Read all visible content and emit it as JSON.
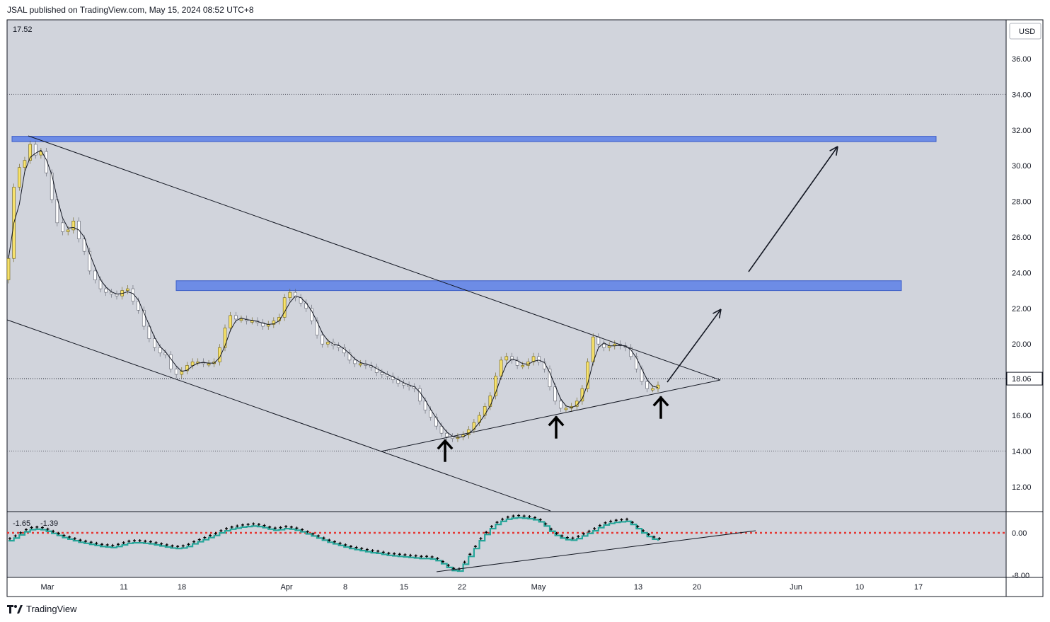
{
  "header": {
    "published": "JSAL published on TradingView.com, May 15, 2024 08:52 UTC+8"
  },
  "footer": {
    "brand": "TradingView",
    "logo_icon": "tradingview-logo-icon"
  },
  "colors": {
    "pane_bg": "#d1d4dc",
    "bar_up": "#f7e26b",
    "bar_down": "#ffffff",
    "zone": "#6d8ce6",
    "zone_border": "#3e5fc7",
    "cci_line": "#26a69a",
    "cci_dots": "#000000",
    "zero_line": "#e53935"
  },
  "chart_data": {
    "type": "bar",
    "currency": "USD",
    "top_left_value": "17.52",
    "current_price": "18.06",
    "y_ticks": [
      "36.00",
      "34.00",
      "32.00",
      "30.00",
      "28.00",
      "26.00",
      "24.00",
      "22.00",
      "20.00",
      "18.00",
      "16.00",
      "14.00",
      "12.00"
    ],
    "ylim": [
      11.5,
      37.5
    ],
    "x_labels": [
      "Mar",
      "11",
      "18",
      "Apr",
      "8",
      "15",
      "22",
      "May",
      "13",
      "20",
      "Jun",
      "10",
      "17"
    ],
    "gridlines": [
      34,
      14
    ],
    "closes": [
      24.8,
      28.8,
      29.9,
      30.3,
      31.2,
      30.6,
      30.8,
      29.6,
      28.1,
      26.8,
      26.3,
      26.4,
      26.9,
      25.9,
      25.2,
      24.1,
      23.6,
      23.1,
      22.9,
      22.8,
      22.7,
      23.0,
      23.1,
      22.4,
      21.9,
      21.0,
      20.3,
      19.8,
      19.5,
      19.4,
      18.6,
      18.3,
      18.5,
      18.8,
      19.0,
      19.0,
      18.9,
      18.9,
      19.0,
      19.8,
      20.9,
      21.6,
      21.4,
      21.4,
      21.3,
      21.3,
      21.2,
      21.0,
      21.1,
      21.3,
      21.5,
      22.6,
      22.9,
      22.6,
      22.3,
      22.0,
      21.3,
      20.5,
      20.0,
      20.1,
      19.9,
      19.8,
      19.5,
      19.1,
      18.9,
      18.9,
      18.8,
      18.7,
      18.4,
      18.3,
      18.2,
      18.0,
      17.8,
      17.7,
      17.6,
      17.5,
      16.8,
      16.3,
      15.9,
      15.4,
      15.0,
      14.8,
      14.7,
      14.8,
      14.9,
      15.2,
      15.6,
      16.0,
      16.5,
      17.1,
      18.2,
      19.1,
      19.3,
      19.1,
      18.8,
      18.8,
      19.0,
      19.3,
      19.0,
      18.6,
      17.6,
      16.8,
      16.4,
      16.4,
      16.5,
      16.8,
      17.5,
      19.0,
      20.4,
      20.0,
      19.8,
      19.9,
      20.0,
      19.9,
      19.8,
      19.3,
      18.6,
      17.9,
      17.5,
      17.5,
      17.7
    ],
    "ma_label": "17.52",
    "zones": [
      {
        "from": 31.35,
        "to": 31.65
      },
      {
        "from": 23.0,
        "to": 23.55
      }
    ],
    "cci": {
      "label_a": "-1.65",
      "label_b": "-1.39",
      "y_ticks": [
        "0.00",
        "-8.00"
      ],
      "ylim": [
        -8.3,
        3.2
      ],
      "values": [
        -1.5,
        -1.0,
        -0.4,
        0.2,
        0.6,
        0.7,
        0.6,
        0.3,
        -0.1,
        -0.5,
        -0.9,
        -1.2,
        -1.5,
        -1.8,
        -2.0,
        -2.2,
        -2.4,
        -2.6,
        -2.7,
        -2.8,
        -2.6,
        -2.3,
        -2.0,
        -1.9,
        -1.9,
        -2.0,
        -2.1,
        -2.3,
        -2.5,
        -2.7,
        -2.9,
        -3.0,
        -2.9,
        -2.6,
        -2.1,
        -1.7,
        -1.3,
        -0.9,
        -0.5,
        0.0,
        0.4,
        0.7,
        0.9,
        1.1,
        1.2,
        1.3,
        1.2,
        1.0,
        0.7,
        0.5,
        0.6,
        0.8,
        0.7,
        0.5,
        0.2,
        -0.2,
        -0.6,
        -1.0,
        -1.4,
        -1.8,
        -2.1,
        -2.4,
        -2.7,
        -3.0,
        -3.2,
        -3.4,
        -3.6,
        -3.8,
        -3.9,
        -4.1,
        -4.3,
        -4.4,
        -4.5,
        -4.6,
        -4.7,
        -4.8,
        -4.9,
        -4.9,
        -5.0,
        -5.3,
        -5.9,
        -6.6,
        -7.2,
        -7.3,
        -6.0,
        -4.5,
        -3.0,
        -1.5,
        -0.3,
        0.8,
        1.6,
        2.2,
        2.6,
        2.8,
        2.9,
        2.8,
        2.7,
        2.5,
        2.1,
        1.3,
        0.3,
        -0.5,
        -1.0,
        -1.3,
        -1.4,
        -1.1,
        -0.6,
        -0.1,
        0.4,
        1.0,
        1.5,
        1.8,
        2.0,
        2.1,
        2.2,
        1.6,
        0.8,
        0.0,
        -0.7,
        -1.2,
        -1.5
      ],
      "zero": 0
    }
  }
}
